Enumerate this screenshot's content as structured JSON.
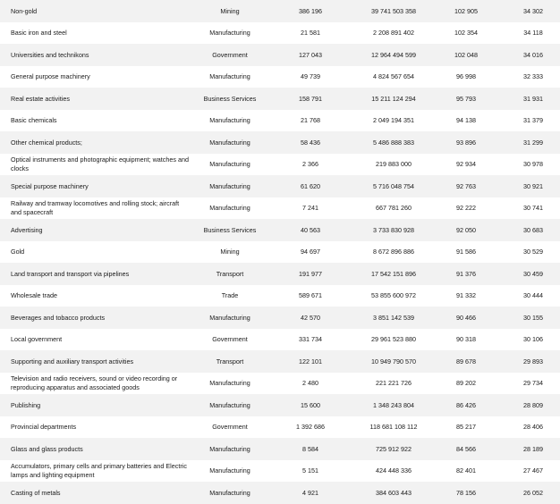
{
  "rows": [
    {
      "name": "Non-gold",
      "sector": "Mining",
      "v1": "386 196",
      "v2": "39 741 503 358",
      "v3": "102 905",
      "v4": "34 302"
    },
    {
      "name": "Basic iron and steel",
      "sector": "Manufacturing",
      "v1": "21 581",
      "v2": "2 208 891 402",
      "v3": "102 354",
      "v4": "34 118"
    },
    {
      "name": "Universities and technikons",
      "sector": "Government",
      "v1": "127 043",
      "v2": "12 964 494 599",
      "v3": "102 048",
      "v4": "34 016"
    },
    {
      "name": "General purpose machinery",
      "sector": "Manufacturing",
      "v1": "49 739",
      "v2": "4 824 567 654",
      "v3": "96 998",
      "v4": "32 333"
    },
    {
      "name": "Real estate activities",
      "sector": "Business Services",
      "v1": "158 791",
      "v2": "15 211 124 294",
      "v3": "95 793",
      "v4": "31 931"
    },
    {
      "name": "Basic chemicals",
      "sector": "Manufacturing",
      "v1": "21 768",
      "v2": "2 049 194 351",
      "v3": "94 138",
      "v4": "31 379"
    },
    {
      "name": "Other chemical products;",
      "sector": "Manufacturing",
      "v1": "58 436",
      "v2": "5 486 888 383",
      "v3": "93 896",
      "v4": "31 299"
    },
    {
      "name": "Optical instruments and photographic equipment; watches and clocks",
      "sector": "Manufacturing",
      "v1": "2 366",
      "v2": "219 883 000",
      "v3": "92 934",
      "v4": "30 978"
    },
    {
      "name": "Special purpose machinery",
      "sector": "Manufacturing",
      "v1": "61 620",
      "v2": "5 716 048 754",
      "v3": "92 763",
      "v4": "30 921"
    },
    {
      "name": "Railway and tramway locomotives and rolling stock; aircraft and spacecraft",
      "sector": "Manufacturing",
      "v1": "7 241",
      "v2": "667 781 260",
      "v3": "92 222",
      "v4": "30 741"
    },
    {
      "name": "Advertising",
      "sector": "Business Services",
      "v1": "40 563",
      "v2": "3 733 830 928",
      "v3": "92 050",
      "v4": "30 683"
    },
    {
      "name": "Gold",
      "sector": "Mining",
      "v1": "94 697",
      "v2": "8 672 896 886",
      "v3": "91 586",
      "v4": "30 529"
    },
    {
      "name": "Land transport and transport via pipelines",
      "sector": "Transport",
      "v1": "191 977",
      "v2": "17 542 151 896",
      "v3": "91 376",
      "v4": "30 459"
    },
    {
      "name": "Wholesale trade",
      "sector": "Trade",
      "v1": "589 671",
      "v2": "53 855 600 972",
      "v3": "91 332",
      "v4": "30 444"
    },
    {
      "name": "Beverages and tobacco products",
      "sector": "Manufacturing",
      "v1": "42 570",
      "v2": "3 851 142 539",
      "v3": "90 466",
      "v4": "30 155"
    },
    {
      "name": "Local government",
      "sector": "Government",
      "v1": "331 734",
      "v2": "29 961 523 880",
      "v3": "90 318",
      "v4": "30 106"
    },
    {
      "name": "Supporting and auxiliary transport activities",
      "sector": "Transport",
      "v1": "122 101",
      "v2": "10 949 790 570",
      "v3": "89 678",
      "v4": "29 893"
    },
    {
      "name": "Television and radio receivers, sound or video recording or reproducing apparatus and associated goods",
      "sector": "Manufacturing",
      "v1": "2 480",
      "v2": "221 221 726",
      "v3": "89 202",
      "v4": "29 734"
    },
    {
      "name": "Publishing",
      "sector": "Manufacturing",
      "v1": "15 600",
      "v2": "1 348 243 804",
      "v3": "86 426",
      "v4": "28 809"
    },
    {
      "name": "Provincial departments",
      "sector": "Government",
      "v1": "1 392 686",
      "v2": "118 681 108 112",
      "v3": "85 217",
      "v4": "28 406"
    },
    {
      "name": "Glass and glass products",
      "sector": "Manufacturing",
      "v1": "8 584",
      "v2": "725 912 922",
      "v3": "84 566",
      "v4": "28 189"
    },
    {
      "name": "Accumulators, primary cells and primary batteries and Electric lamps and lighting equipment",
      "sector": "Manufacturing",
      "v1": "5 151",
      "v2": "424 448 336",
      "v3": "82 401",
      "v4": "27 467"
    },
    {
      "name": "Casting of metals",
      "sector": "Manufacturing",
      "v1": "4 921",
      "v2": "384 603 443",
      "v3": "78 156",
      "v4": "26 052"
    }
  ]
}
